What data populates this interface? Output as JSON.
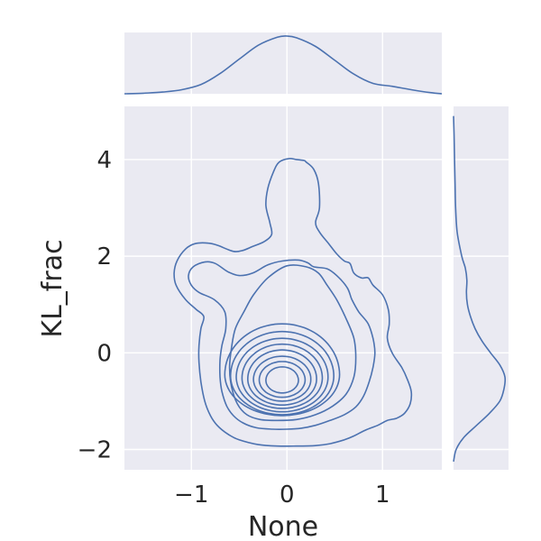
{
  "chart_data": {
    "type": "kde-jointplot",
    "xlabel": "None",
    "ylabel": "KL_frac",
    "xlim": [
      -1.7,
      1.62
    ],
    "ylim": [
      -2.42,
      5.1
    ],
    "x_ticks": [
      {
        "value": -1,
        "label": "−1"
      },
      {
        "value": 0,
        "label": "0"
      },
      {
        "value": 1,
        "label": "1"
      }
    ],
    "y_ticks": [
      {
        "value": -2,
        "label": "−2"
      },
      {
        "value": 0,
        "label": "0"
      },
      {
        "value": 2,
        "label": "2"
      },
      {
        "value": 4,
        "label": "4"
      }
    ],
    "grid": true,
    "color": "#4c72b0",
    "panel_color": "#eaeaf2",
    "marginal_x": {
      "x": [
        -1.7,
        -1.5,
        -1.3,
        -1.1,
        -0.9,
        -0.7,
        -0.5,
        -0.3,
        -0.1,
        0.0,
        0.1,
        0.3,
        0.5,
        0.7,
        0.9,
        1.1,
        1.3,
        1.5,
        1.62
      ],
      "density": [
        0.0,
        0.01,
        0.03,
        0.07,
        0.16,
        0.35,
        0.6,
        0.84,
        0.98,
        1.0,
        0.97,
        0.82,
        0.58,
        0.34,
        0.18,
        0.13,
        0.07,
        0.02,
        0.0
      ]
    },
    "marginal_y": {
      "y": [
        -2.25,
        -2.0,
        -1.75,
        -1.5,
        -1.25,
        -1.0,
        -0.75,
        -0.5,
        -0.25,
        0.0,
        0.25,
        0.5,
        0.75,
        1.0,
        1.25,
        1.5,
        1.75,
        2.0,
        2.5,
        3.0,
        3.5,
        4.0,
        4.5,
        4.9
      ],
      "density": [
        0.0,
        0.05,
        0.2,
        0.45,
        0.7,
        0.9,
        0.98,
        1.0,
        0.9,
        0.72,
        0.55,
        0.42,
        0.33,
        0.27,
        0.25,
        0.26,
        0.23,
        0.16,
        0.07,
        0.04,
        0.03,
        0.02,
        0.01,
        0.0
      ]
    },
    "contours": [
      {
        "x": [
          0.2,
          0.28,
          0.33,
          0.34,
          0.3,
          0.34,
          0.44,
          0.52,
          0.6,
          0.66,
          0.7,
          0.78,
          0.85,
          0.9,
          1.0,
          1.06,
          1.07,
          1.05,
          1.1,
          1.2,
          1.26,
          1.3,
          1.29,
          1.23,
          1.15,
          1.05,
          0.95,
          0.82,
          0.7,
          0.6,
          0.45,
          0.3,
          0.1,
          -0.1,
          -0.3,
          -0.5,
          -0.62,
          -0.73,
          -0.8,
          -0.86,
          -0.9,
          -0.92,
          -0.92,
          -0.9,
          -0.87,
          -0.95,
          -1.06,
          -1.16,
          -1.18,
          -1.15,
          -1.06,
          -0.96,
          -0.82,
          -0.72,
          -0.56,
          -0.46,
          -0.36,
          -0.24,
          -0.16,
          -0.18,
          -0.22,
          -0.2,
          -0.14,
          -0.08,
          0.02,
          0.1,
          0.18,
          0.2
        ],
        "y": [
          3.95,
          3.8,
          3.5,
          3.0,
          2.7,
          2.5,
          2.25,
          2.05,
          1.9,
          1.85,
          1.65,
          1.55,
          1.55,
          1.4,
          1.2,
          0.9,
          0.6,
          0.3,
          0.0,
          -0.3,
          -0.55,
          -0.8,
          -1.05,
          -1.25,
          -1.35,
          -1.4,
          -1.5,
          -1.6,
          -1.72,
          -1.8,
          -1.88,
          -1.92,
          -1.93,
          -1.93,
          -1.9,
          -1.8,
          -1.68,
          -1.5,
          -1.3,
          -1.0,
          -0.6,
          -0.2,
          0.15,
          0.5,
          0.75,
          0.9,
          1.1,
          1.4,
          1.65,
          1.9,
          2.15,
          2.26,
          2.27,
          2.22,
          2.1,
          2.12,
          2.2,
          2.3,
          2.45,
          2.7,
          3.05,
          3.4,
          3.75,
          3.95,
          4.02,
          4.0,
          3.98,
          3.95
        ]
      },
      {
        "x": [
          0.28,
          0.42,
          0.52,
          0.63,
          0.68,
          0.75,
          0.85,
          0.9,
          0.92,
          0.9,
          0.86,
          0.8,
          0.72,
          0.6,
          0.45,
          0.3,
          0.15,
          0.0,
          -0.15,
          -0.32,
          -0.46,
          -0.56,
          -0.63,
          -0.68,
          -0.7,
          -0.7,
          -0.68,
          -0.64,
          -0.65,
          -0.76,
          -0.92,
          -1.0,
          -1.03,
          -0.98,
          -0.86,
          -0.75,
          -0.62,
          -0.5,
          -0.36,
          -0.2,
          -0.05,
          0.12,
          0.22,
          0.28
        ],
        "y": [
          1.78,
          1.74,
          1.6,
          1.35,
          1.1,
          0.85,
          0.6,
          0.3,
          0.0,
          -0.3,
          -0.6,
          -0.9,
          -1.12,
          -1.28,
          -1.4,
          -1.5,
          -1.56,
          -1.58,
          -1.58,
          -1.55,
          -1.45,
          -1.3,
          -1.1,
          -0.8,
          -0.5,
          -0.15,
          0.15,
          0.5,
          0.85,
          1.1,
          1.25,
          1.4,
          1.6,
          1.78,
          1.88,
          1.85,
          1.68,
          1.6,
          1.65,
          1.82,
          1.9,
          1.92,
          1.86,
          1.78
        ]
      },
      {
        "x": [
          0.0,
          0.2,
          0.33,
          0.42,
          0.52,
          0.62,
          0.7,
          0.72,
          0.7,
          0.62,
          0.48,
          0.3,
          0.1,
          -0.1,
          -0.28,
          -0.42,
          -0.52,
          -0.58,
          -0.6,
          -0.58,
          -0.54,
          -0.45,
          -0.35,
          -0.2,
          0.0
        ],
        "y": [
          1.8,
          1.78,
          1.65,
          1.4,
          1.1,
          0.7,
          0.3,
          -0.1,
          -0.5,
          -0.85,
          -1.1,
          -1.28,
          -1.38,
          -1.4,
          -1.38,
          -1.28,
          -1.05,
          -0.7,
          -0.3,
          0.1,
          0.5,
          0.85,
          1.2,
          1.55,
          1.8
        ]
      },
      {
        "cx": -0.05,
        "cy": -0.45,
        "rx": 0.6,
        "ry_up": 1.05,
        "ry_down": 0.85
      },
      {
        "cx": -0.05,
        "cy": -0.48,
        "rx": 0.54,
        "ry_up": 0.92,
        "ry_down": 0.8
      },
      {
        "cx": -0.05,
        "cy": -0.5,
        "rx": 0.48,
        "ry_up": 0.8,
        "ry_down": 0.72
      },
      {
        "cx": -0.05,
        "cy": -0.52,
        "rx": 0.42,
        "ry_up": 0.7,
        "ry_down": 0.63
      },
      {
        "cx": -0.05,
        "cy": -0.54,
        "rx": 0.36,
        "ry_up": 0.6,
        "ry_down": 0.54
      },
      {
        "cx": -0.05,
        "cy": -0.55,
        "rx": 0.3,
        "ry_up": 0.48,
        "ry_down": 0.45
      },
      {
        "cx": -0.05,
        "cy": -0.56,
        "rx": 0.24,
        "ry_up": 0.38,
        "ry_down": 0.36
      },
      {
        "cx": -0.05,
        "cy": -0.57,
        "rx": 0.17,
        "ry_up": 0.28,
        "ry_down": 0.26
      }
    ]
  }
}
